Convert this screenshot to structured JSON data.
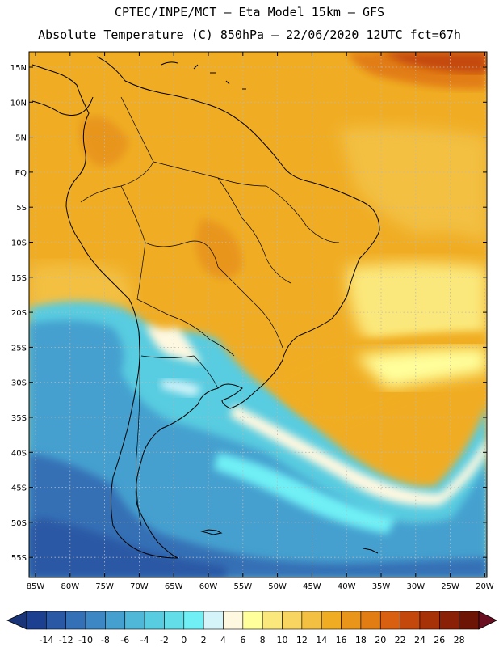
{
  "title_line1": "CPTEC/INPE/MCT  –  Eta Model 15km – GFS",
  "title_line2": "Absolute Temperature (C) 850hPa – 22/06/2020 12UTC fct=67h",
  "lat_labels": [
    "15N",
    "10N",
    "5N",
    "EQ",
    "5S",
    "10S",
    "15S",
    "20S",
    "25S",
    "30S",
    "35S",
    "40S",
    "45S",
    "50S",
    "55S"
  ],
  "lon_labels": [
    "85W",
    "80W",
    "75W",
    "70W",
    "65W",
    "60W",
    "55W",
    "50W",
    "45W",
    "40W",
    "35W",
    "30W",
    "25W",
    "20W"
  ],
  "colorbar": {
    "labels": [
      "-14",
      "-12",
      "-10",
      "-8",
      "-6",
      "-4",
      "-2",
      "0",
      "2",
      "4",
      "6",
      "8",
      "10",
      "12",
      "14",
      "16",
      "18",
      "20",
      "22",
      "24",
      "26",
      "28"
    ],
    "colors": [
      "#1d3f8f",
      "#2a58a4",
      "#3470b5",
      "#3d88c4",
      "#45a0cf",
      "#4fb8d8",
      "#58cce0",
      "#63dde8",
      "#70f0f5",
      "#d4f4fa",
      "#fff8e0",
      "#ffff9c",
      "#fbe87c",
      "#f8d460",
      "#f3c042",
      "#f0ad24",
      "#e8951a",
      "#e27d14",
      "#d86010",
      "#c4480c",
      "#a83208",
      "#8a2006",
      "#6e1404"
    ],
    "under_color": "#1a347a",
    "over_color": "#6a0f22"
  },
  "colors": {
    "land_outline": "#000000",
    "grid": "#b8b8b8"
  }
}
